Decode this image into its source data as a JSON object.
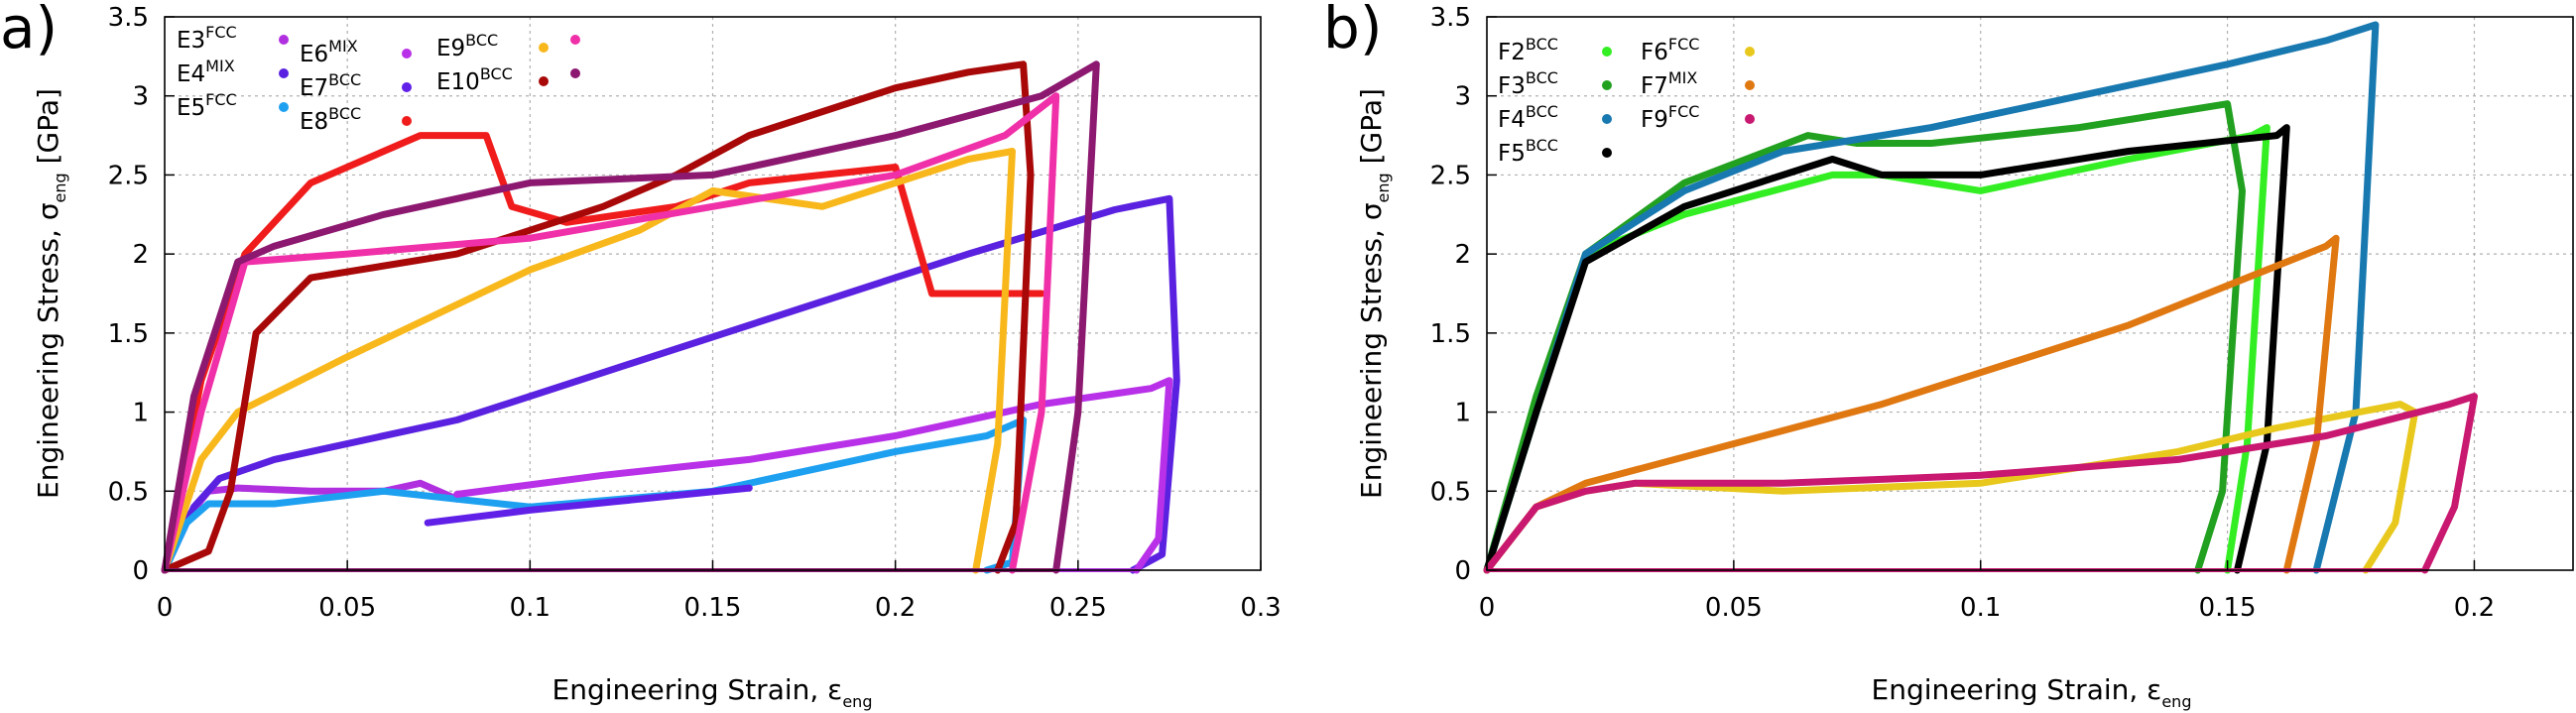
{
  "panels": [
    {
      "label": "a)",
      "xlabel": "Engineering Strain, ε",
      "xlabel_sub": "eng",
      "ylabel": "Engineering Stress, σ",
      "ylabel_sub": "eng",
      "ylabel_unit": " [GPa]",
      "xticks": [
        "0",
        "0.05",
        "0.1",
        "0.15",
        "0.2",
        "0.25",
        "0.3"
      ],
      "yticks": [
        "0",
        "0.5",
        "1",
        "1.5",
        "2",
        "2.5",
        "3",
        "3.5"
      ],
      "legend_rows": [
        [
          "E3",
          "E4",
          "E5"
        ],
        [
          "E6",
          "E7",
          "E8"
        ],
        [
          "E9",
          "E10"
        ]
      ],
      "legend": [
        {
          "base": "E3",
          "sup": "FCC",
          "color": "#b030e0"
        },
        {
          "base": "E4",
          "sup": "MIX",
          "color": "#5a22e0"
        },
        {
          "base": "E5",
          "sup": "FCC",
          "color": "#1ea0f0"
        },
        {
          "base": "E6",
          "sup": "MIX",
          "color": "#b830e8"
        },
        {
          "base": "E7",
          "sup": "BCC",
          "color": "#6020e8"
        },
        {
          "base": "E8",
          "sup": "BCC",
          "color": "#f01c1c"
        },
        {
          "base": "E9",
          "sup": "BCC",
          "color": "#f8b81c"
        },
        {
          "base": "E10",
          "sup": "BCC",
          "color": "#a80808"
        },
        {
          "base": "",
          "sup": "",
          "color": "#f030a8"
        },
        {
          "base": "",
          "sup": "",
          "color": "#8c1870"
        }
      ]
    },
    {
      "label": "b)",
      "xlabel": "Engineering Strain, ε",
      "xlabel_sub": "eng",
      "ylabel": "Engineering Stress, σ",
      "ylabel_sub": "eng",
      "ylabel_unit": " [GPa]",
      "xticks": [
        "0",
        "0.05",
        "0.1",
        "0.15",
        "0.2"
      ],
      "yticks": [
        "0",
        "0.5",
        "1",
        "1.5",
        "2",
        "2.5",
        "3",
        "3.5"
      ],
      "legend": [
        {
          "base": "F2",
          "sup": "BCC",
          "color": "#33ee22"
        },
        {
          "base": "F3",
          "sup": "BCC",
          "color": "#22a020"
        },
        {
          "base": "F4",
          "sup": "BCC",
          "color": "#1878b0"
        },
        {
          "base": "F5",
          "sup": "BCC",
          "color": "#000000"
        },
        {
          "base": "F6",
          "sup": "FCC",
          "color": "#e8c81c"
        },
        {
          "base": "F7",
          "sup": "MIX",
          "color": "#e07812"
        },
        {
          "base": "F9",
          "sup": "FCC",
          "color": "#c81870"
        }
      ]
    }
  ],
  "chart_data": [
    {
      "type": "line",
      "xlabel": "Engineering Strain, ε_eng",
      "ylabel": "Engineering Stress, σ_eng [GPa]",
      "xlim": [
        0,
        0.3
      ],
      "ylim": [
        0,
        3.5
      ],
      "grid": true,
      "legend_position": "top-left",
      "series": [
        {
          "name": "E3FCC",
          "color": "#b030e0",
          "x": [
            0,
            0.005,
            0.012,
            0.02,
            0.04,
            0.06,
            0.07,
            0.08
          ],
          "y": [
            0,
            0.3,
            0.5,
            0.52,
            0.5,
            0.5,
            0.55,
            0.45
          ]
        },
        {
          "name": "E4MIX",
          "color": "#5a22e0",
          "x": [
            0,
            0.008,
            0.015,
            0.03,
            0.08,
            0.12,
            0.18,
            0.22,
            0.26,
            0.275,
            0.277,
            0.273,
            0.265
          ],
          "y": [
            0,
            0.4,
            0.58,
            0.7,
            0.95,
            1.25,
            1.7,
            2.0,
            2.28,
            2.35,
            1.2,
            0.1,
            0
          ]
        },
        {
          "name": "E5FCC",
          "color": "#1ea0f0",
          "x": [
            0,
            0.006,
            0.012,
            0.03,
            0.06,
            0.1,
            0.15,
            0.2,
            0.225,
            0.235,
            0.232,
            0.225
          ],
          "y": [
            0,
            0.3,
            0.42,
            0.42,
            0.5,
            0.4,
            0.5,
            0.75,
            0.85,
            0.95,
            0.05,
            0
          ]
        },
        {
          "name": "E6MIX",
          "color": "#b830e8",
          "x": [
            0.08,
            0.12,
            0.16,
            0.2,
            0.24,
            0.27,
            0.275,
            0.272,
            0.266
          ],
          "y": [
            0.48,
            0.6,
            0.7,
            0.85,
            1.05,
            1.15,
            1.2,
            0.2,
            0
          ]
        },
        {
          "name": "E7BCC",
          "color": "#6020e8",
          "x": [
            0.072,
            0.1,
            0.13,
            0.16
          ],
          "y": [
            0.3,
            0.38,
            0.45,
            0.52
          ]
        },
        {
          "name": "E8BCC",
          "color": "#f01c1c",
          "x": [
            0,
            0.01,
            0.022,
            0.04,
            0.07,
            0.088,
            0.095,
            0.11,
            0.14,
            0.16,
            0.18,
            0.2,
            0.21,
            0.24
          ],
          "y": [
            0,
            1.2,
            2.0,
            2.45,
            2.75,
            2.75,
            2.3,
            2.2,
            2.3,
            2.45,
            2.5,
            2.55,
            1.75,
            1.75
          ]
        },
        {
          "name": "E9BCC",
          "color": "#f8b81c",
          "x": [
            0,
            0.01,
            0.02,
            0.05,
            0.1,
            0.13,
            0.15,
            0.18,
            0.2,
            0.22,
            0.232,
            0.228,
            0.222
          ],
          "y": [
            0,
            0.7,
            1.0,
            1.35,
            1.9,
            2.15,
            2.4,
            2.3,
            2.45,
            2.6,
            2.65,
            0.8,
            0
          ]
        },
        {
          "name": "E10BCC",
          "color": "#a80808",
          "x": [
            0,
            0.012,
            0.018,
            0.025,
            0.04,
            0.08,
            0.12,
            0.14,
            0.16,
            0.2,
            0.22,
            0.235,
            0.237,
            0.233,
            0.228
          ],
          "y": [
            0,
            0.12,
            0.5,
            1.5,
            1.85,
            2.0,
            2.3,
            2.5,
            2.75,
            3.05,
            3.15,
            3.2,
            2.5,
            0.3,
            0
          ]
        },
        {
          "name": "",
          "color": "#f030a8",
          "x": [
            0,
            0.01,
            0.022,
            0.05,
            0.1,
            0.15,
            0.2,
            0.23,
            0.244,
            0.24,
            0.232
          ],
          "y": [
            0,
            1.0,
            1.95,
            2.0,
            2.1,
            2.3,
            2.5,
            2.75,
            3.0,
            1.0,
            0
          ]
        },
        {
          "name": "",
          "color": "#8c1870",
          "x": [
            0,
            0.008,
            0.02,
            0.03,
            0.06,
            0.1,
            0.15,
            0.2,
            0.24,
            0.255,
            0.25,
            0.244
          ],
          "y": [
            0,
            1.1,
            1.95,
            2.05,
            2.25,
            2.45,
            2.5,
            2.75,
            3.0,
            3.2,
            1.0,
            0
          ]
        }
      ]
    },
    {
      "type": "line",
      "xlabel": "Engineering Strain, ε_eng",
      "ylabel": "Engineering Stress, σ_eng [GPa]",
      "xlim": [
        0,
        0.22
      ],
      "ylim": [
        0,
        3.5
      ],
      "grid": true,
      "legend_position": "top-left",
      "series": [
        {
          "name": "F2BCC",
          "color": "#33ee22",
          "x": [
            0,
            0.01,
            0.02,
            0.04,
            0.07,
            0.08,
            0.1,
            0.13,
            0.155,
            0.158,
            0.154,
            0.15
          ],
          "y": [
            0,
            1.0,
            2.0,
            2.25,
            2.5,
            2.5,
            2.4,
            2.6,
            2.75,
            2.8,
            0.8,
            0
          ]
        },
        {
          "name": "F3BCC",
          "color": "#22a020",
          "x": [
            0,
            0.01,
            0.02,
            0.04,
            0.065,
            0.075,
            0.09,
            0.12,
            0.15,
            0.153,
            0.149,
            0.144
          ],
          "y": [
            0,
            1.1,
            2.0,
            2.45,
            2.75,
            2.7,
            2.7,
            2.8,
            2.95,
            2.4,
            0.5,
            0
          ]
        },
        {
          "name": "F4BCC",
          "color": "#1878b0",
          "x": [
            0,
            0.01,
            0.02,
            0.04,
            0.06,
            0.09,
            0.12,
            0.15,
            0.17,
            0.18,
            0.176,
            0.168
          ],
          "y": [
            0,
            1.0,
            2.0,
            2.4,
            2.65,
            2.8,
            3.0,
            3.2,
            3.35,
            3.45,
            1.0,
            0
          ]
        },
        {
          "name": "F5BCC",
          "color": "#000000",
          "x": [
            0,
            0.01,
            0.02,
            0.04,
            0.07,
            0.08,
            0.1,
            0.13,
            0.16,
            0.162,
            0.158,
            0.152
          ],
          "y": [
            0,
            1.0,
            1.95,
            2.3,
            2.6,
            2.5,
            2.5,
            2.65,
            2.75,
            2.8,
            0.8,
            0
          ]
        },
        {
          "name": "F6FCC",
          "color": "#e8c81c",
          "x": [
            0,
            0.01,
            0.02,
            0.03,
            0.06,
            0.1,
            0.14,
            0.16,
            0.185,
            0.188,
            0.184,
            0.178
          ],
          "y": [
            0,
            0.4,
            0.5,
            0.55,
            0.5,
            0.55,
            0.75,
            0.9,
            1.05,
            1.0,
            0.3,
            0
          ]
        },
        {
          "name": "F7MIX",
          "color": "#e07812",
          "x": [
            0,
            0.01,
            0.02,
            0.05,
            0.08,
            0.1,
            0.13,
            0.15,
            0.17,
            0.172,
            0.168,
            0.162
          ],
          "y": [
            0,
            0.4,
            0.55,
            0.8,
            1.05,
            1.25,
            1.55,
            1.8,
            2.05,
            2.1,
            0.8,
            0
          ]
        },
        {
          "name": "F9FCC",
          "color": "#c81870",
          "x": [
            0,
            0.01,
            0.02,
            0.03,
            0.06,
            0.1,
            0.14,
            0.17,
            0.195,
            0.2,
            0.196,
            0.19
          ],
          "y": [
            0,
            0.4,
            0.5,
            0.55,
            0.55,
            0.6,
            0.7,
            0.85,
            1.05,
            1.1,
            0.4,
            0
          ]
        }
      ]
    }
  ]
}
